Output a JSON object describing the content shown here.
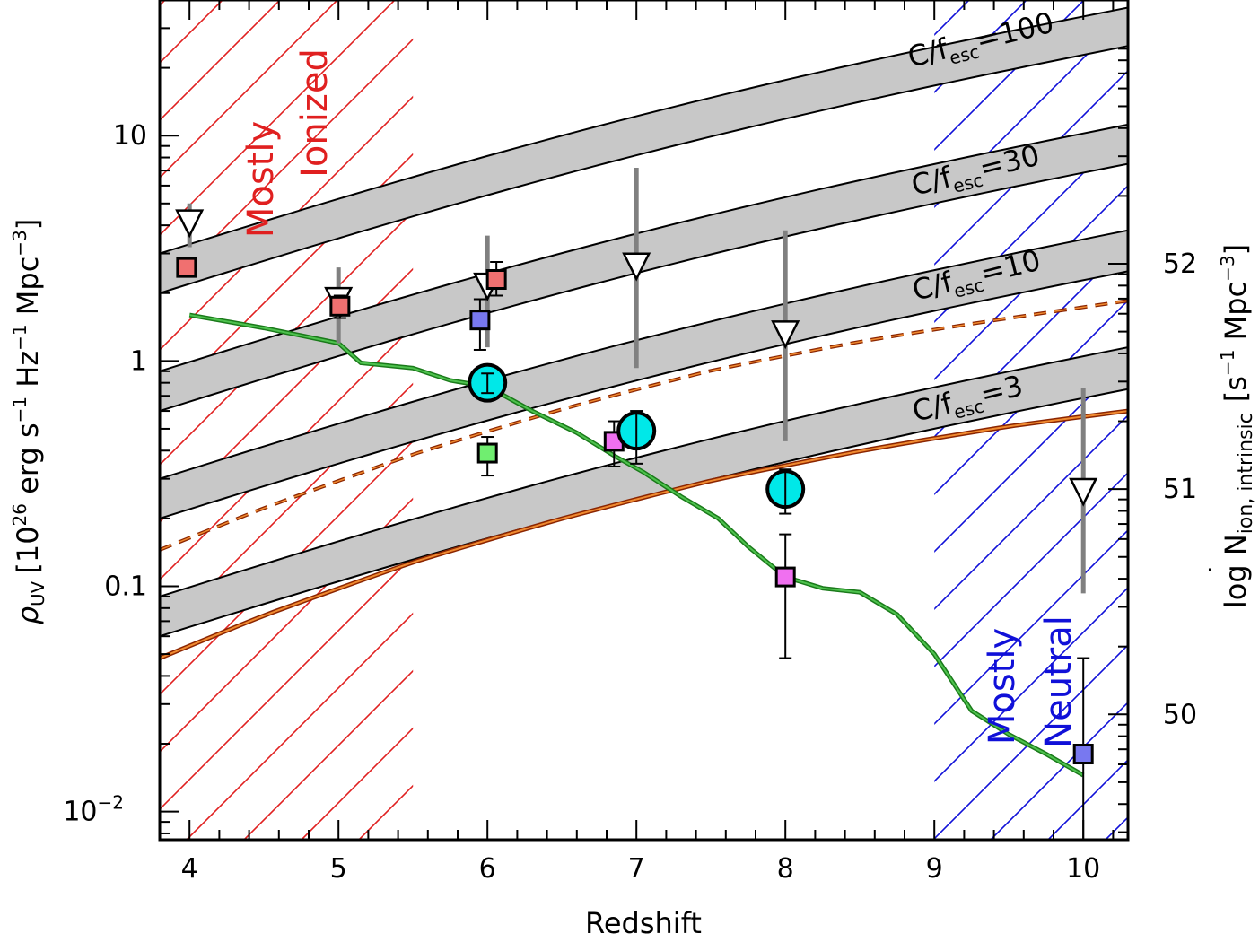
{
  "chart_data": {
    "type": "scatter",
    "xlabel": "Redshift",
    "ylabel_left": {
      "symbol": "ρ",
      "sub": "UV",
      "bracket_open": "[",
      "base": "10",
      "exp26": "26",
      "unit1": " erg s",
      "m1": "−1",
      "unit2": " Hz",
      "unit3": " Mpc",
      "m3": "−3",
      "bracket_close": "]"
    },
    "ylabel_right": {
      "prefix": "log N",
      "dot": "˙",
      "sub": "ion, intrinsic",
      "unit_open": "[s",
      "m1": "−1",
      "mid": " Mpc",
      "m3": "−3",
      "unit_close": "]"
    },
    "xlim": [
      3.8,
      10.3
    ],
    "ylim": [
      0.0075,
      40
    ],
    "x_ticks": [
      "4",
      "5",
      "6",
      "7",
      "8",
      "9",
      "10"
    ],
    "y_ticks_left": [
      {
        "value": 10,
        "base": "10",
        "exp": ""
      },
      {
        "value": 1,
        "base": "1",
        "exp": ""
      },
      {
        "value": 0.1,
        "base": "0.1",
        "exp": ""
      },
      {
        "value": 0.01,
        "base": "10",
        "exp": "−2"
      }
    ],
    "y_ticks_right": [
      "52",
      "51",
      "50"
    ],
    "regions": [
      {
        "name": "ionized",
        "label1": "Mostly",
        "label2": "Ionized",
        "x_range": [
          3.8,
          5.5
        ],
        "color": "#e02020"
      },
      {
        "name": "neutral",
        "label1": "Mostly",
        "label2": "Neutral",
        "x_range": [
          9.0,
          10.3
        ],
        "color": "#1010d8"
      }
    ],
    "bands": [
      {
        "name": "100",
        "label": "C/f",
        "sub": "esc",
        "value": "=100",
        "low_z": [
          [
            3.8,
            2.0
          ],
          [
            10.3,
            25
          ]
        ],
        "high_z": [
          [
            3.8,
            3.0
          ],
          [
            10.3,
            37
          ]
        ]
      },
      {
        "name": "30",
        "label": "C/f",
        "sub": "esc",
        "value": "=30",
        "low_z": [
          [
            3.8,
            0.6
          ],
          [
            10.3,
            7.5
          ]
        ],
        "high_z": [
          [
            3.8,
            0.9
          ],
          [
            10.3,
            11.2
          ]
        ]
      },
      {
        "name": "10",
        "label": "C/f",
        "sub": "esc",
        "value": "=10",
        "low_z": [
          [
            3.8,
            0.2
          ],
          [
            10.3,
            2.5
          ]
        ],
        "high_z": [
          [
            3.8,
            0.3
          ],
          [
            10.3,
            3.8
          ]
        ]
      },
      {
        "name": "3",
        "label": "C/f",
        "sub": "esc",
        "value": "=3",
        "low_z": [
          [
            3.8,
            0.06
          ],
          [
            10.3,
            0.75
          ]
        ],
        "high_z": [
          [
            3.8,
            0.09
          ],
          [
            10.3,
            1.15
          ]
        ]
      }
    ],
    "orange_solid": [
      [
        3.8,
        0.048
      ],
      [
        4.5,
        0.07
      ],
      [
        5.5,
        0.113
      ],
      [
        6.5,
        0.17
      ],
      [
        7.5,
        0.25
      ],
      [
        8.5,
        0.35
      ],
      [
        9.5,
        0.48
      ],
      [
        10.3,
        0.6
      ]
    ],
    "orange_dashed": [
      [
        3.8,
        0.145
      ],
      [
        4.5,
        0.21
      ],
      [
        5.5,
        0.34
      ],
      [
        6.5,
        0.52
      ],
      [
        7.5,
        0.77
      ],
      [
        8.5,
        1.07
      ],
      [
        9.5,
        1.45
      ],
      [
        10.3,
        1.85
      ]
    ],
    "green_line": [
      [
        4.0,
        1.6
      ],
      [
        4.5,
        1.4
      ],
      [
        5.0,
        1.2
      ],
      [
        5.15,
        0.98
      ],
      [
        5.5,
        0.93
      ],
      [
        5.75,
        0.82
      ],
      [
        6.0,
        0.77
      ],
      [
        6.3,
        0.6
      ],
      [
        6.6,
        0.48
      ],
      [
        6.85,
        0.38
      ],
      [
        7.05,
        0.32
      ],
      [
        7.3,
        0.25
      ],
      [
        7.55,
        0.2
      ],
      [
        7.75,
        0.15
      ],
      [
        8.0,
        0.11
      ],
      [
        8.25,
        0.098
      ],
      [
        8.5,
        0.094
      ],
      [
        8.75,
        0.075
      ],
      [
        9.0,
        0.05
      ],
      [
        9.25,
        0.028
      ],
      [
        9.5,
        0.022
      ],
      [
        9.75,
        0.018
      ],
      [
        10.0,
        0.0145
      ]
    ],
    "upper_limits": [
      {
        "x": 4.0,
        "y": 4.2,
        "low": 3.2,
        "high": 5.0
      },
      {
        "x": 5.0,
        "y": 1.9,
        "low": 1.2,
        "high": 2.6
      },
      {
        "x": 6.0,
        "y": 2.2,
        "low": 1.15,
        "high": 3.6
      },
      {
        "x": 7.0,
        "y": 2.7,
        "low": 0.93,
        "high": 7.2
      },
      {
        "x": 8.0,
        "y": 1.35,
        "low": 0.44,
        "high": 3.8
      },
      {
        "x": 10.0,
        "y": 0.27,
        "low": 0.093,
        "high": 0.76
      }
    ],
    "squares": [
      {
        "x": 3.98,
        "y": 2.6,
        "low": 2.45,
        "high": 2.78,
        "color": "#f07070"
      },
      {
        "x": 5.01,
        "y": 1.75,
        "low": 1.55,
        "high": 1.95,
        "color": "#f07070"
      },
      {
        "x": 6.06,
        "y": 2.3,
        "low": 1.95,
        "high": 2.75,
        "color": "#f07070"
      },
      {
        "x": 5.95,
        "y": 1.52,
        "low": 1.12,
        "high": 1.88,
        "color": "#7878f0"
      },
      {
        "x": 6.0,
        "y": 0.39,
        "low": 0.31,
        "high": 0.46,
        "color": "#70ee70"
      },
      {
        "x": 6.85,
        "y": 0.44,
        "low": 0.34,
        "high": 0.54,
        "color": "#f070f0"
      },
      {
        "x": 8.0,
        "y": 0.11,
        "low": 0.048,
        "high": 0.17,
        "color": "#f070f0"
      },
      {
        "x": 10.0,
        "y": 0.018,
        "low": 0.0075,
        "high": 0.048,
        "color": "#7878f0"
      }
    ],
    "circles": [
      {
        "x": 6.0,
        "y": 0.8,
        "low": 0.72,
        "high": 0.88,
        "color": "#00e8e8"
      },
      {
        "x": 7.0,
        "y": 0.49,
        "low": 0.35,
        "high": 0.6,
        "color": "#00e8e8"
      },
      {
        "x": 8.0,
        "y": 0.27,
        "low": 0.21,
        "high": 0.33,
        "color": "#00e8e8"
      }
    ]
  }
}
